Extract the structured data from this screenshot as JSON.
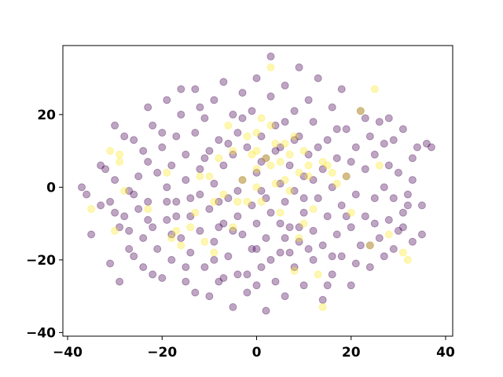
{
  "chart_data": {
    "type": "scatter",
    "title": "",
    "xlabel": "",
    "ylabel": "",
    "xlim": [
      -41,
      41.5
    ],
    "ylim": [
      -41,
      39
    ],
    "x_ticks": [
      -40,
      -20,
      0,
      20,
      40
    ],
    "y_ticks": [
      -40,
      -20,
      0,
      20
    ],
    "x_tick_labels": [
      "−40",
      "−20",
      "0",
      "20",
      "40"
    ],
    "y_tick_labels": [
      "−40",
      "−20",
      "0",
      "20"
    ],
    "grid": false,
    "legend": "none",
    "marker_alpha": 0.35,
    "colors": {
      "class_0": "#440154",
      "class_1": "#fde725"
    },
    "series": [
      {
        "class": 0,
        "color": "#440154",
        "points": [
          [
            -37,
            0
          ],
          [
            -36,
            -2
          ],
          [
            -35,
            -13
          ],
          [
            -33,
            6
          ],
          [
            -32,
            5
          ],
          [
            -31,
            -4
          ],
          [
            -31,
            -21
          ],
          [
            -30,
            17
          ],
          [
            -30,
            2
          ],
          [
            -30,
            -7
          ],
          [
            -29,
            -11
          ],
          [
            -29,
            -26
          ],
          [
            -28,
            -8
          ],
          [
            -27,
            -1
          ],
          [
            -27,
            -17
          ],
          [
            -26,
            -2
          ],
          [
            -26,
            13
          ],
          [
            -25,
            -6
          ],
          [
            -25,
            3
          ],
          [
            -24,
            -14
          ],
          [
            -24,
            -22
          ],
          [
            -23,
            22
          ],
          [
            -23,
            7
          ],
          [
            -23,
            -4
          ],
          [
            -22,
            -11
          ],
          [
            -22,
            17
          ],
          [
            -21,
            -17
          ],
          [
            -21,
            4
          ],
          [
            -20,
            -25
          ],
          [
            -20,
            11
          ],
          [
            -19,
            0
          ],
          [
            -19,
            -9
          ],
          [
            -19,
            24
          ],
          [
            -18,
            -20
          ],
          [
            -18,
            6
          ],
          [
            -17,
            14
          ],
          [
            -17,
            -4
          ],
          [
            -16,
            -14
          ],
          [
            -16,
            20
          ],
          [
            -15,
            -26
          ],
          [
            -15,
            2
          ],
          [
            -15,
            9
          ],
          [
            -14,
            -8
          ],
          [
            -14,
            -18
          ],
          [
            -13,
            27
          ],
          [
            -13,
            15
          ],
          [
            -12,
            -2
          ],
          [
            -12,
            -12
          ],
          [
            -12,
            5
          ],
          [
            -11,
            -22
          ],
          [
            -11,
            19
          ],
          [
            -10,
            10
          ],
          [
            -10,
            -6
          ],
          [
            -10,
            -30
          ],
          [
            -9,
            -15
          ],
          [
            -9,
            24
          ],
          [
            -9,
            1
          ],
          [
            -8,
            -26
          ],
          [
            -8,
            13
          ],
          [
            -7,
            -10
          ],
          [
            -7,
            6
          ],
          [
            -7,
            29
          ],
          [
            -6,
            -3
          ],
          [
            -6,
            -19
          ],
          [
            -5,
            20
          ],
          [
            -5,
            -33
          ],
          [
            -5,
            9
          ],
          [
            -4,
            -8
          ],
          [
            -4,
            -24
          ],
          [
            -4,
            15
          ],
          [
            -3,
            2
          ],
          [
            -3,
            -13
          ],
          [
            -3,
            26
          ],
          [
            -2,
            -29
          ],
          [
            -2,
            11
          ],
          [
            -1,
            -5
          ],
          [
            -1,
            -17
          ],
          [
            -1,
            21
          ],
          [
            0,
            4
          ],
          [
            0,
            -10
          ],
          [
            0,
            30
          ],
          [
            1,
            -22
          ],
          [
            1,
            14
          ],
          [
            1,
            -1
          ],
          [
            2,
            -34
          ],
          [
            2,
            8
          ],
          [
            2,
            -14
          ],
          [
            3,
            25
          ],
          [
            3,
            -7
          ],
          [
            3,
            36
          ],
          [
            4,
            -26
          ],
          [
            4,
            17
          ],
          [
            5,
            1
          ],
          [
            5,
            -18
          ],
          [
            5,
            11
          ],
          [
            6,
            -4
          ],
          [
            6,
            -30
          ],
          [
            6,
            28
          ],
          [
            7,
            -11
          ],
          [
            7,
            6
          ],
          [
            8,
            21
          ],
          [
            8,
            -22
          ],
          [
            8,
            -1
          ],
          [
            9,
            14
          ],
          [
            9,
            -15
          ],
          [
            9,
            33
          ],
          [
            10,
            -7
          ],
          [
            10,
            3
          ],
          [
            10,
            -27
          ],
          [
            11,
            24
          ],
          [
            11,
            9
          ],
          [
            12,
            -12
          ],
          [
            12,
            -20
          ],
          [
            12,
            18
          ],
          [
            13,
            -3
          ],
          [
            13,
            30
          ],
          [
            14,
            5
          ],
          [
            14,
            -16
          ],
          [
            14,
            -31
          ],
          [
            15,
            13
          ],
          [
            15,
            -8
          ],
          [
            16,
            22
          ],
          [
            16,
            -24
          ],
          [
            16,
            0
          ],
          [
            17,
            -13
          ],
          [
            17,
            8
          ],
          [
            18,
            27
          ],
          [
            18,
            -19
          ],
          [
            18,
            -5
          ],
          [
            19,
            16
          ],
          [
            19,
            3
          ],
          [
            20,
            -11
          ],
          [
            20,
            -27
          ],
          [
            21,
            11
          ],
          [
            21,
            -2
          ],
          [
            22,
            21
          ],
          [
            22,
            -16
          ],
          [
            23,
            5
          ],
          [
            23,
            -8
          ],
          [
            24,
            14
          ],
          [
            24,
            -22
          ],
          [
            25,
            -3
          ],
          [
            25,
            9
          ],
          [
            26,
            -14
          ],
          [
            26,
            18
          ],
          [
            27,
            0
          ],
          [
            27,
            -19
          ],
          [
            28,
            6
          ],
          [
            28,
            -9
          ],
          [
            29,
            13
          ],
          [
            29,
            -3
          ],
          [
            30,
            -12
          ],
          [
            30,
            4
          ],
          [
            31,
            16
          ],
          [
            31,
            -7
          ],
          [
            32,
            -2
          ],
          [
            33,
            8
          ],
          [
            33,
            -15
          ],
          [
            34,
            11
          ],
          [
            35,
            -5
          ],
          [
            35,
            -13
          ],
          [
            36,
            12
          ],
          [
            37,
            11
          ],
          [
            -33,
            -5
          ],
          [
            -28,
            14
          ],
          [
            -26,
            -19
          ],
          [
            -24,
            10
          ],
          [
            -22,
            -24
          ],
          [
            -20,
            15
          ],
          [
            -18,
            -13
          ],
          [
            -16,
            27
          ],
          [
            -14,
            -3
          ],
          [
            -13,
            -29
          ],
          [
            -11,
            8
          ],
          [
            -9,
            -20
          ],
          [
            -8,
            -4
          ],
          [
            -6,
            12
          ],
          [
            -5,
            -12
          ],
          [
            -3,
            19
          ],
          [
            -2,
            -24
          ],
          [
            0,
            -17
          ],
          [
            1,
            7
          ],
          [
            2,
            -3
          ],
          [
            4,
            10
          ],
          [
            5,
            -10
          ],
          [
            7,
            -18
          ],
          [
            8,
            13
          ],
          [
            10,
            -3
          ],
          [
            11,
            -17
          ],
          [
            13,
            11
          ],
          [
            15,
            -27
          ],
          [
            17,
            16
          ],
          [
            19,
            -8
          ],
          [
            21,
            -21
          ],
          [
            23,
            19
          ],
          [
            25,
            -10
          ],
          [
            27,
            12
          ],
          [
            29,
            -17
          ],
          [
            31,
            -11
          ],
          [
            33,
            2
          ],
          [
            -27,
            -12
          ],
          [
            -23,
            -9
          ],
          [
            -19,
            -4
          ],
          [
            -15,
            -22
          ],
          [
            -12,
            22
          ],
          [
            -8,
            -11
          ],
          [
            -4,
            -1
          ],
          [
            0,
            -27
          ],
          [
            3,
            -20
          ],
          [
            6,
            18
          ],
          [
            9,
            -11
          ],
          [
            12,
            2
          ],
          [
            16,
            -19
          ],
          [
            20,
            7
          ],
          [
            24,
            -16
          ],
          [
            28,
            19
          ],
          [
            32,
            -5
          ],
          [
            -17,
            -8
          ],
          [
            -7,
            -25
          ],
          [
            6,
            -14
          ]
        ]
      },
      {
        "class": 1,
        "color": "#fde725",
        "points": [
          [
            -35,
            -6
          ],
          [
            -31,
            10
          ],
          [
            -30,
            -12
          ],
          [
            -29,
            9
          ],
          [
            -29,
            7
          ],
          [
            -28,
            -1
          ],
          [
            -23,
            -6
          ],
          [
            -19,
            4
          ],
          [
            -18,
            -14
          ],
          [
            -17,
            -12
          ],
          [
            -16,
            -16
          ],
          [
            -14,
            -11
          ],
          [
            -13,
            -7
          ],
          [
            -12,
            3
          ],
          [
            -11,
            -15
          ],
          [
            -10,
            3
          ],
          [
            -9,
            -4
          ],
          [
            -8,
            8
          ],
          [
            -7,
            -2
          ],
          [
            -6,
            17
          ],
          [
            -5,
            10
          ],
          [
            -4,
            -4
          ],
          [
            -3,
            2
          ],
          [
            -2,
            14
          ],
          [
            -1,
            9
          ],
          [
            0,
            0
          ],
          [
            0,
            5
          ],
          [
            0,
            10
          ],
          [
            0,
            15
          ],
          [
            1,
            -4
          ],
          [
            1,
            19
          ],
          [
            2,
            8
          ],
          [
            3,
            6
          ],
          [
            3,
            17
          ],
          [
            4,
            1
          ],
          [
            4,
            12
          ],
          [
            5,
            -7
          ],
          [
            5,
            7
          ],
          [
            6,
            12
          ],
          [
            6,
            2
          ],
          [
            7,
            9
          ],
          [
            7,
            -1
          ],
          [
            8,
            14
          ],
          [
            8,
            -23
          ],
          [
            9,
            4
          ],
          [
            9,
            -14
          ],
          [
            10,
            10
          ],
          [
            10,
            -10
          ],
          [
            11,
            6
          ],
          [
            11,
            3
          ],
          [
            12,
            -6
          ],
          [
            13,
            -24
          ],
          [
            14,
            7
          ],
          [
            14,
            -33
          ],
          [
            15,
            6
          ],
          [
            16,
            4
          ],
          [
            17,
            1
          ],
          [
            19,
            3
          ],
          [
            20,
            -7
          ],
          [
            22,
            21
          ],
          [
            24,
            -16
          ],
          [
            25,
            27
          ],
          [
            26,
            6
          ],
          [
            28,
            -13
          ],
          [
            31,
            -18
          ],
          [
            32,
            -20
          ],
          [
            -9,
            -18
          ],
          [
            -5,
            -11
          ],
          [
            -2,
            -4
          ],
          [
            3,
            33
          ]
        ]
      }
    ]
  }
}
